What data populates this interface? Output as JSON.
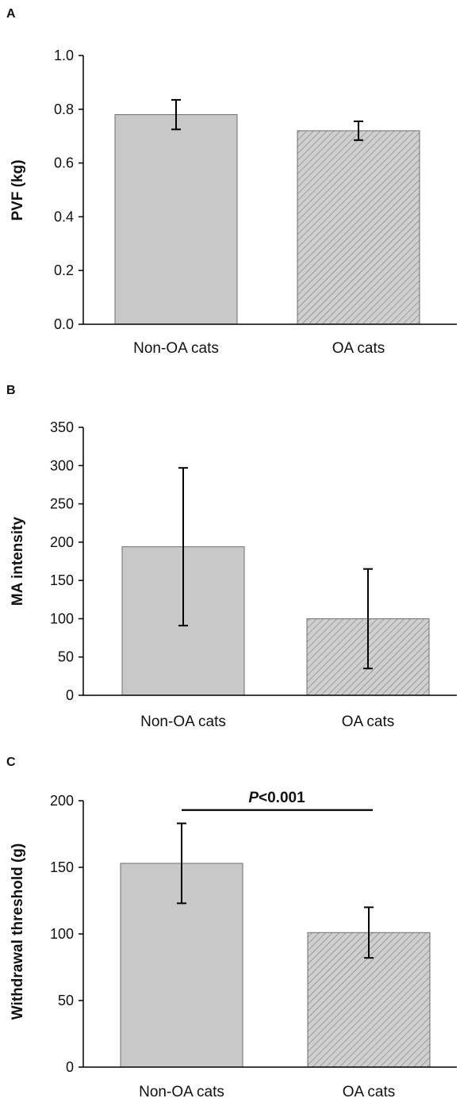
{
  "chart_data": [
    {
      "panel": "A",
      "type": "bar",
      "categories": [
        "Non-OA cats",
        "OA cats"
      ],
      "values": [
        0.78,
        0.72
      ],
      "errors": [
        0.055,
        0.035
      ],
      "ylabel": "PVF (kg)",
      "xlabel": "",
      "ylim": [
        0.0,
        1.0
      ],
      "yticks": [
        "0.0",
        "0.2",
        "0.4",
        "0.6",
        "0.8",
        "1.0"
      ],
      "ytick_values": [
        0,
        0.2,
        0.4,
        0.6,
        0.8,
        1.0
      ],
      "bar_fills": [
        "solid-gray",
        "hatched-gray"
      ],
      "colors": {
        "bar": "#c8c8c8",
        "hatch": "#7a7a7a",
        "error": "#000000"
      }
    },
    {
      "panel": "B",
      "type": "bar",
      "categories": [
        "Non-OA cats",
        "OA cats"
      ],
      "values": [
        194,
        100
      ],
      "errors": [
        103,
        65
      ],
      "ylabel": "MA intensity",
      "xlabel": "",
      "ylim": [
        0,
        350
      ],
      "yticks": [
        "0",
        "50",
        "100",
        "150",
        "200",
        "250",
        "300",
        "350"
      ],
      "ytick_values": [
        0,
        50,
        100,
        150,
        200,
        250,
        300,
        350
      ],
      "bar_fills": [
        "solid-gray",
        "hatched-gray"
      ],
      "colors": {
        "bar": "#c8c8c8",
        "hatch": "#7a7a7a",
        "error": "#000000"
      }
    },
    {
      "panel": "C",
      "type": "bar",
      "categories": [
        "Non-OA cats",
        "OA cats"
      ],
      "values": [
        153,
        101
      ],
      "errors": [
        30,
        19
      ],
      "ylabel": "Withdrawal threshold (g)",
      "xlabel": "",
      "ylim": [
        0,
        200
      ],
      "yticks": [
        "0",
        "50",
        "100",
        "150",
        "200"
      ],
      "ytick_values": [
        0,
        50,
        100,
        150,
        200
      ],
      "bar_fills": [
        "solid-gray",
        "hatched-gray"
      ],
      "annotation": {
        "p_symbol": "P",
        "p_text": "<0.001",
        "bracket_value": 193
      },
      "colors": {
        "bar": "#c8c8c8",
        "hatch": "#7a7a7a",
        "error": "#000000"
      }
    }
  ]
}
